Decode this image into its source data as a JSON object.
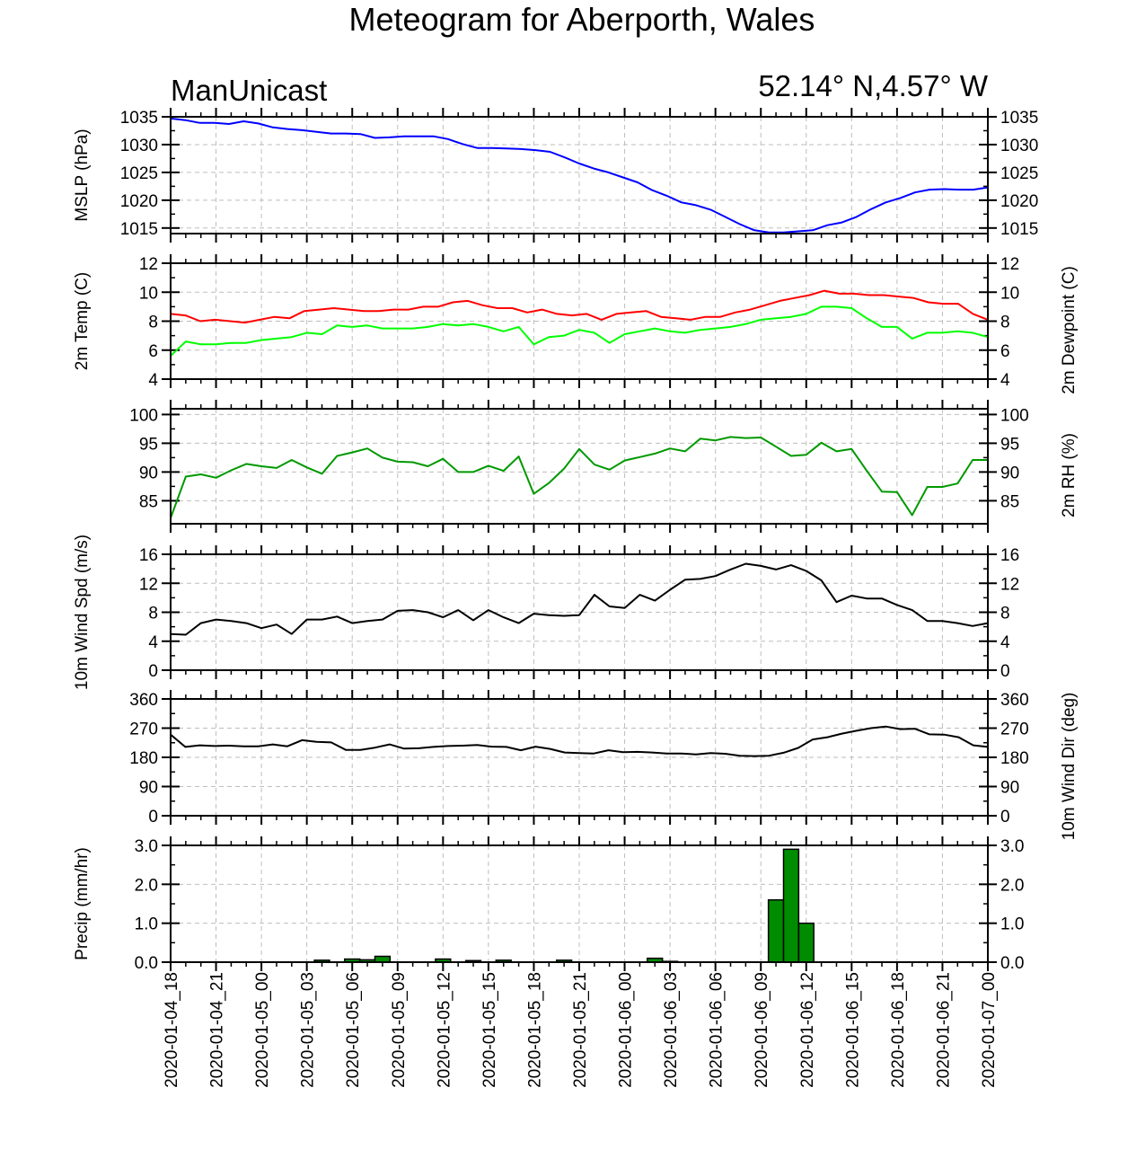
{
  "title": "Meteogram for Aberporth, Wales",
  "model": "ManUnicast",
  "location": "52.14° N,4.57° W",
  "chart_data": {
    "type": "line",
    "time_ticks": [
      "2020-01-04_18",
      "2020-01-04_21",
      "2020-01-05_00",
      "2020-01-05_03",
      "2020-01-05_06",
      "2020-01-05_09",
      "2020-01-05_12",
      "2020-01-05_15",
      "2020-01-05_18",
      "2020-01-05_21",
      "2020-01-06_00",
      "2020-01-06_03",
      "2020-01-06_06",
      "2020-01-06_09",
      "2020-01-06_12",
      "2020-01-06_15",
      "2020-01-06_18",
      "2020-01-06_21",
      "2020-01-07_00"
    ],
    "x_hours_range": [
      0,
      54
    ],
    "grid": true,
    "panels": [
      {
        "key": "mslp",
        "ylabel_left": "MSLP (hPa)",
        "ylabel_right": "",
        "ylim": [
          1014,
          1035
        ],
        "ticks": [
          1015,
          1020,
          1025,
          1030,
          1035
        ],
        "tick_labels": [
          "1015",
          "1020",
          "1025",
          "1030",
          "1035"
        ],
        "series": [
          {
            "color": "#0000ff",
            "values": [
              1034.7,
              1034.4,
              1033.9,
              1033.9,
              1033.7,
              1034.2,
              1033.8,
              1033.1,
              1032.8,
              1032.6,
              1032.3,
              1032.0,
              1032.0,
              1031.9,
              1031.2,
              1031.3,
              1031.5,
              1031.5,
              1031.5,
              1031.0,
              1030.1,
              1029.4,
              1029.4,
              1029.3,
              1029.2,
              1029.0,
              1028.7,
              1027.7,
              1026.6,
              1025.7,
              1025.0,
              1024.1,
              1023.2,
              1021.8,
              1020.8,
              1019.6,
              1019.1,
              1018.3,
              1017.0,
              1015.7,
              1014.6,
              1014.2,
              1014.2,
              1014.4,
              1014.6,
              1015.5,
              1016.0,
              1017.0,
              1018.4,
              1019.6,
              1020.4,
              1021.4,
              1021.9,
              1022.0,
              1021.9,
              1021.9,
              1022.3
            ]
          }
        ]
      },
      {
        "key": "temp",
        "ylabel_left": "2m Temp (C)",
        "ylabel_right": "2m Dewpoint (C)",
        "ylim": [
          4,
          12
        ],
        "ticks": [
          4,
          6,
          8,
          10,
          12
        ],
        "tick_labels": [
          "4",
          "6",
          "8",
          "10",
          "12"
        ],
        "series": [
          {
            "color": "#ff0000",
            "values": [
              8.5,
              8.4,
              8.0,
              8.1,
              8.0,
              7.9,
              8.1,
              8.3,
              8.2,
              8.7,
              8.8,
              8.9,
              8.8,
              8.7,
              8.7,
              8.8,
              8.8,
              9.0,
              9.0,
              9.3,
              9.4,
              9.1,
              8.9,
              8.9,
              8.6,
              8.8,
              8.5,
              8.4,
              8.5,
              8.1,
              8.5,
              8.6,
              8.7,
              8.3,
              8.2,
              8.1,
              8.3,
              8.3,
              8.6,
              8.8,
              9.1,
              9.4,
              9.6,
              9.8,
              10.1,
              9.9,
              9.9,
              9.8,
              9.8,
              9.7,
              9.6,
              9.3,
              9.2,
              9.2,
              8.5,
              8.1
            ]
          },
          {
            "color": "#00ff00",
            "values": [
              5.6,
              6.6,
              6.4,
              6.4,
              6.5,
              6.5,
              6.7,
              6.8,
              6.9,
              7.2,
              7.1,
              7.7,
              7.6,
              7.7,
              7.5,
              7.5,
              7.5,
              7.6,
              7.8,
              7.7,
              7.8,
              7.6,
              7.3,
              7.6,
              6.4,
              6.9,
              7.0,
              7.4,
              7.2,
              6.5,
              7.1,
              7.3,
              7.5,
              7.3,
              7.2,
              7.4,
              7.5,
              7.6,
              7.8,
              8.1,
              8.2,
              8.3,
              8.5,
              9.0,
              9.0,
              8.9,
              8.2,
              7.6,
              7.6,
              6.8,
              7.2,
              7.2,
              7.3,
              7.2,
              6.9
            ]
          }
        ]
      },
      {
        "key": "rh",
        "ylabel_left": "",
        "ylabel_right": "2m RH (%)",
        "ylim": [
          81,
          101
        ],
        "ticks": [
          85,
          90,
          95,
          100
        ],
        "tick_labels": [
          "85",
          "90",
          "95",
          "100"
        ],
        "series": [
          {
            "color": "#009900",
            "values": [
              82.0,
              89.2,
              89.6,
              89.0,
              90.3,
              91.4,
              91.0,
              90.7,
              92.1,
              90.8,
              89.7,
              92.8,
              93.4,
              94.1,
              92.5,
              91.8,
              91.7,
              91.0,
              92.3,
              90.0,
              90.0,
              91.1,
              90.2,
              92.7,
              86.2,
              88.1,
              90.6,
              94.0,
              91.3,
              90.4,
              92.0,
              92.6,
              93.2,
              94.1,
              93.6,
              95.8,
              95.5,
              96.1,
              95.9,
              96.0,
              94.4,
              92.8,
              93.0,
              95.1,
              93.6,
              94.0,
              90.2,
              86.6,
              86.5,
              82.5,
              87.4,
              87.4,
              88.0,
              92.1,
              92.1
            ]
          }
        ]
      },
      {
        "key": "wspd",
        "ylabel_left": "10m Wind Spd (m/s)",
        "ylabel_right": "",
        "ylim": [
          0,
          16
        ],
        "ticks": [
          0,
          4,
          8,
          12,
          16
        ],
        "tick_labels": [
          "0",
          "4",
          "8",
          "12",
          "16"
        ],
        "series": [
          {
            "color": "#000000",
            "values": [
              5.0,
              4.9,
              6.5,
              7.0,
              6.8,
              6.5,
              5.8,
              6.3,
              5.0,
              7.0,
              7.0,
              7.4,
              6.5,
              6.8,
              7.0,
              8.2,
              8.3,
              8.0,
              7.3,
              8.3,
              6.9,
              8.3,
              7.3,
              6.5,
              7.8,
              7.6,
              7.5,
              7.6,
              10.4,
              8.8,
              8.6,
              10.4,
              9.6,
              11.1,
              12.5,
              12.6,
              13.0,
              13.9,
              14.7,
              14.4,
              13.9,
              14.5,
              13.7,
              12.4,
              9.4,
              10.3,
              9.9,
              9.9,
              9.0,
              8.3,
              6.8,
              6.8,
              6.5,
              6.1,
              6.5
            ]
          }
        ]
      },
      {
        "key": "wdir",
        "ylabel_left": "",
        "ylabel_right": "10m Wind Dir (deg)",
        "ylim": [
          0,
          360
        ],
        "ticks": [
          0,
          90,
          180,
          270,
          360
        ],
        "tick_labels": [
          "0",
          "90",
          "180",
          "270",
          "360"
        ],
        "series": [
          {
            "color": "#000000",
            "values": [
              250,
              212,
              217,
              215,
              216,
              214,
              214,
              220,
              214,
              233,
              228,
              226,
              203,
              203,
              210,
              220,
              207,
              208,
              212,
              215,
              216,
              218,
              213,
              212,
              202,
              213,
              206,
              195,
              193,
              192,
              202,
              196,
              197,
              195,
              192,
              192,
              189,
              193,
              191,
              185,
              184,
              185,
              194,
              209,
              235,
              242,
              253,
              262,
              270,
              275,
              267,
              268,
              251,
              250,
              242,
              217,
              212
            ]
          }
        ]
      },
      {
        "key": "precip",
        "ylabel_left": "Precip (mm/hr)",
        "ylabel_right": "",
        "ylim": [
          0,
          3
        ],
        "ticks": [
          0,
          1,
          2,
          3
        ],
        "tick_labels": [
          "0.0",
          "1.0",
          "2.0",
          "3.0"
        ],
        "bars": {
          "color": "#008c00",
          "hours": [
            10,
            12,
            13,
            14,
            18,
            20,
            22,
            26,
            32,
            33,
            40,
            41,
            42
          ],
          "values": [
            0.05,
            0.08,
            0.06,
            0.15,
            0.08,
            0.04,
            0.05,
            0.05,
            0.1,
            0.02,
            1.6,
            2.9,
            1.0
          ]
        }
      }
    ]
  }
}
